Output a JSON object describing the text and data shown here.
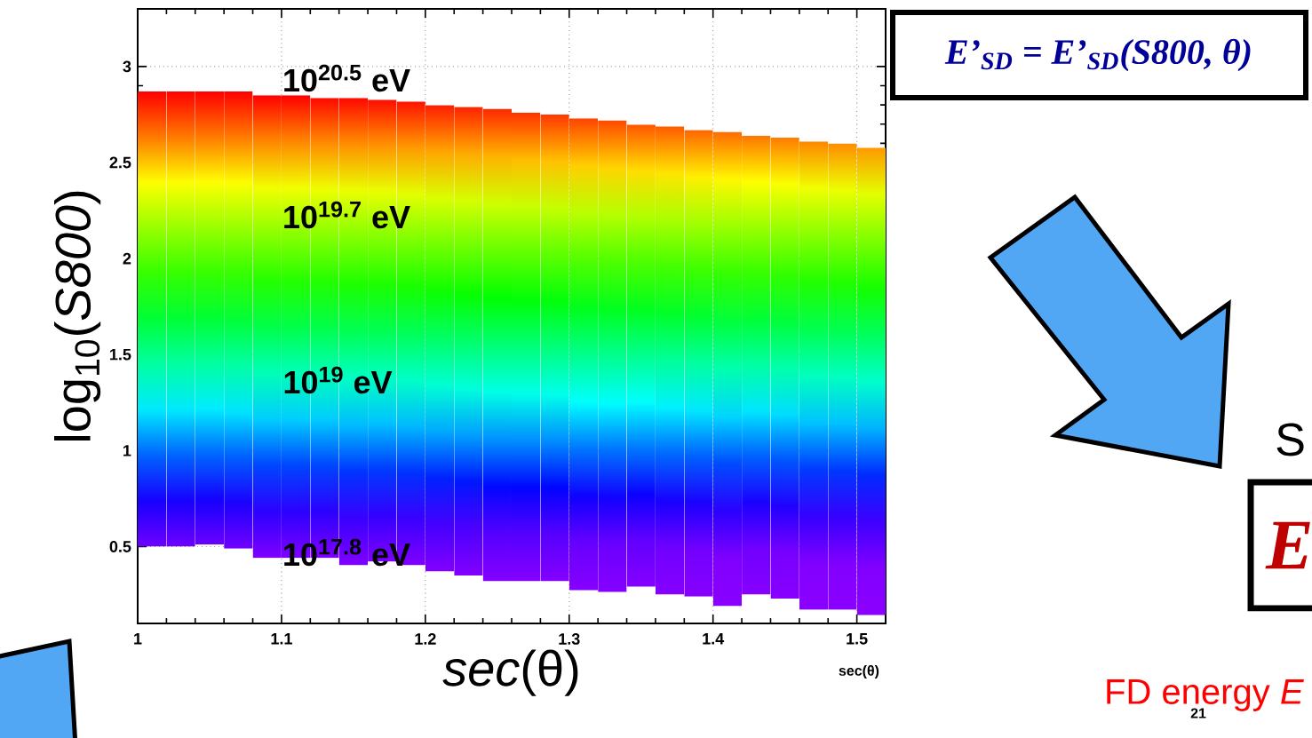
{
  "chart_data": {
    "type": "bar",
    "xlabel": "*sec*(θ)",
    "ylabel": "log$_{10}$(*S800*)",
    "x": [
      1.01,
      1.03,
      1.05,
      1.07,
      1.09,
      1.11,
      1.13,
      1.15,
      1.17,
      1.19,
      1.21,
      1.23,
      1.25,
      1.27,
      1.29,
      1.31,
      1.33,
      1.35,
      1.37,
      1.39,
      1.41,
      1.43,
      1.45,
      1.47,
      1.49,
      1.51
    ],
    "base": [
      0.5,
      0.5,
      0.51,
      0.49,
      0.44,
      0.44,
      0.44,
      0.4,
      0.42,
      0.4,
      0.37,
      0.35,
      0.32,
      0.32,
      0.32,
      0.27,
      0.26,
      0.29,
      0.25,
      0.24,
      0.19,
      0.25,
      0.23,
      0.17,
      0.17,
      0.14
    ],
    "values": [
      2.37,
      2.37,
      2.36,
      2.38,
      2.41,
      2.41,
      2.4,
      2.44,
      2.41,
      2.42,
      2.43,
      2.44,
      2.46,
      2.44,
      2.43,
      2.46,
      2.46,
      2.41,
      2.44,
      2.43,
      2.47,
      2.39,
      2.4,
      2.44,
      2.43,
      2.44
    ],
    "xlim": [
      1,
      1.52
    ],
    "ylim": [
      0.1,
      3.3
    ],
    "xticks": [
      1,
      1.1,
      1.2,
      1.3,
      1.4,
      1.5
    ],
    "yticks": [
      0.5,
      1,
      1.5,
      2,
      2.5,
      3
    ],
    "grid": true,
    "annotations": [
      "10$^{20.5}$ eV",
      "10$^{19.7}$ eV",
      "10$^{19}$ eV",
      "10$^{17.8}$ eV",
      "sec(θ)",
      "E’$_{SD}$ = E’$_{SD}$(S800, θ)",
      "S",
      "E",
      "FD energy *E*",
      "21"
    ]
  }
}
